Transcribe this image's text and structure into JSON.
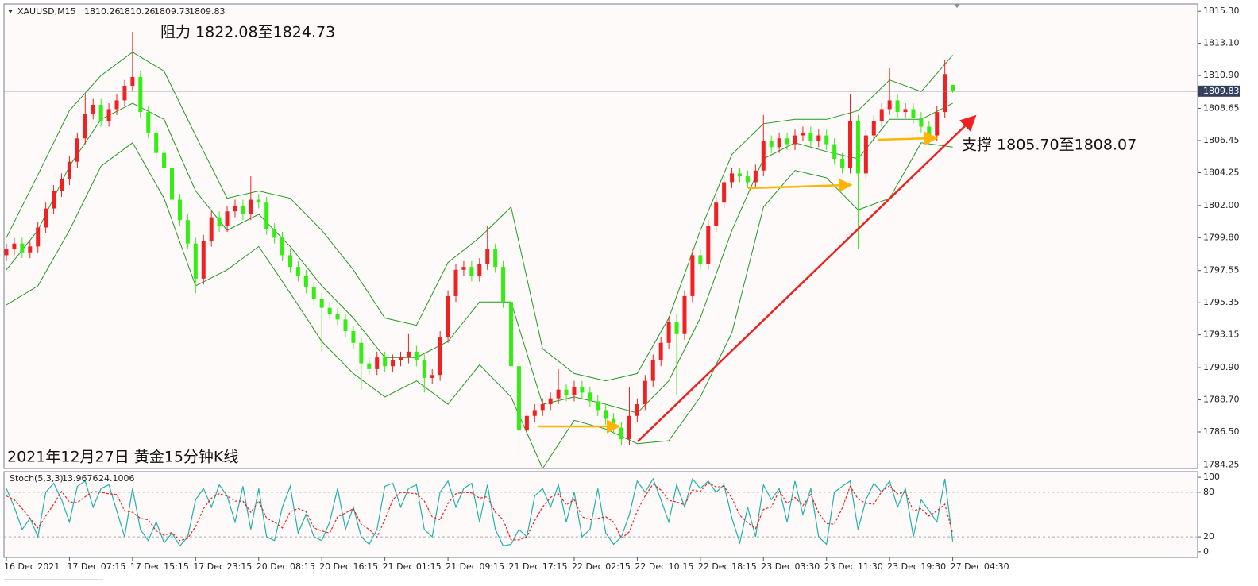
{
  "chart_data": [
    {
      "type": "candlestick",
      "symbol": "XAUUSD,M15",
      "annotations": [
        "阻力 1822.08至1824.73",
        "支撑 1805.70至1808.07",
        "2021年12月27日 黄金15分钟K线"
      ],
      "categories": [
        "16 Dec 2021",
        null,
        null,
        null,
        null,
        null,
        null,
        null,
        "17 Dec 07:15",
        null,
        null,
        null,
        null,
        null,
        null,
        null,
        "17 Dec 15:15",
        null,
        null,
        null,
        null,
        null,
        null,
        null,
        "17 Dec 23:15",
        null,
        null,
        null,
        null,
        null,
        null,
        null,
        "20 Dec 08:15",
        null,
        null,
        null,
        null,
        null,
        null,
        null,
        "20 Dec 16:15",
        null,
        null,
        null,
        null,
        null,
        null,
        null,
        "21 Dec 01:15",
        null,
        null,
        null,
        null,
        null,
        null,
        null,
        "21 Dec 09:15",
        null,
        null,
        null,
        null,
        null,
        null,
        null,
        "21 Dec 17:15",
        null,
        null,
        null,
        null,
        null,
        null,
        null,
        "22 Dec 02:15",
        null,
        null,
        null,
        null,
        null,
        null,
        null,
        "22 Dec 10:15",
        null,
        null,
        null,
        null,
        null,
        null,
        null,
        "22 Dec 18:15",
        null,
        null,
        null,
        null,
        null,
        null,
        null,
        "23 Dec 03:30",
        null,
        null,
        null,
        null,
        null,
        null,
        null,
        "23 Dec 11:30",
        null,
        null,
        null,
        null,
        null,
        null,
        null,
        "23 Dec 19:30",
        null,
        null,
        null,
        null,
        null,
        null,
        null,
        "27 Dec 04:30"
      ],
      "open": [
        1798.6,
        1799.0,
        1799.4,
        1798.8,
        1799.2,
        1800.5,
        1801.8,
        1803.0,
        1803.8,
        1805.0,
        1806.6,
        1808.3,
        1808.9,
        1807.8,
        1808.6,
        1809.2,
        1810.2,
        1810.8,
        1808.4,
        1807.0,
        1805.6,
        1804.6,
        1802.4,
        1801.0,
        1799.4,
        1797.0,
        1799.6,
        1801.2,
        1800.6,
        1801.6,
        1802.0,
        1801.4,
        1802.4,
        1802.2,
        1800.4,
        1799.8,
        1798.6,
        1797.8,
        1797.2,
        1796.4,
        1795.6,
        1795.0,
        1794.6,
        1794.2,
        1793.4,
        1792.6,
        1791.2,
        1790.8,
        1791.6,
        1791.0,
        1791.4,
        1791.6,
        1792.0,
        1791.4,
        1790.2,
        1790.4,
        1793.0,
        1795.8,
        1797.6,
        1797.8,
        1797.2,
        1798.0,
        1799.0,
        1797.8,
        1795.4,
        1791.0,
        1786.6,
        1787.6,
        1788.0,
        1788.4,
        1788.8,
        1789.4,
        1789.0,
        1789.6,
        1789.2,
        1788.6,
        1788.0,
        1787.4,
        1786.8,
        1786.0,
        1787.6,
        1788.4,
        1790.0,
        1791.4,
        1792.6,
        1794.0,
        1793.2,
        1795.8,
        1798.6,
        1798.0,
        1800.6,
        1802.2,
        1803.6,
        1804.2,
        1804.0,
        1803.6,
        1804.4,
        1806.4,
        1806.0,
        1806.6,
        1806.2,
        1806.8,
        1807.0,
        1806.4,
        1806.8,
        1806.2,
        1805.2,
        1804.6,
        1807.8,
        1804.2,
        1806.8,
        1807.8,
        1808.6,
        1809.2,
        1808.4,
        1808.6,
        1808.0,
        1807.4,
        1806.8,
        1808.4,
        1810.26
      ],
      "high": [
        1799.4,
        1799.8,
        1799.8,
        1799.6,
        1800.9,
        1802.2,
        1803.4,
        1804.2,
        1805.4,
        1807.0,
        1809.6,
        1809.3,
        1809.3,
        1809.0,
        1809.6,
        1810.6,
        1813.9,
        1811.2,
        1808.8,
        1807.4,
        1806.0,
        1805.0,
        1802.8,
        1801.4,
        1799.8,
        1800.0,
        1801.6,
        1801.6,
        1802.0,
        1802.4,
        1802.4,
        1804.0,
        1802.8,
        1802.6,
        1800.8,
        1800.2,
        1799.0,
        1798.2,
        1797.6,
        1796.8,
        1796.0,
        1795.4,
        1795.0,
        1794.6,
        1793.8,
        1793.0,
        1791.6,
        1792.0,
        1792.0,
        1791.8,
        1792.0,
        1793.2,
        1792.4,
        1791.8,
        1790.8,
        1793.4,
        1796.2,
        1798.0,
        1798.2,
        1798.2,
        1798.4,
        1800.6,
        1799.4,
        1798.2,
        1795.8,
        1791.4,
        1788.0,
        1788.4,
        1788.8,
        1789.2,
        1790.8,
        1789.8,
        1790.0,
        1790.0,
        1789.6,
        1789.0,
        1788.4,
        1787.8,
        1787.2,
        1789.6,
        1788.8,
        1790.4,
        1791.8,
        1793.0,
        1794.4,
        1794.6,
        1796.2,
        1799.0,
        1799.0,
        1801.0,
        1802.6,
        1804.0,
        1804.6,
        1804.6,
        1804.4,
        1804.8,
        1808.2,
        1806.8,
        1807.0,
        1807.0,
        1807.2,
        1807.4,
        1807.4,
        1807.2,
        1807.2,
        1806.6,
        1805.6,
        1809.6,
        1808.2,
        1807.2,
        1808.2,
        1809.0,
        1811.4,
        1809.6,
        1809.0,
        1809.0,
        1808.4,
        1807.8,
        1808.8,
        1812.0,
        1810.26
      ],
      "low": [
        1798.2,
        1798.6,
        1798.4,
        1798.4,
        1798.8,
        1800.1,
        1801.4,
        1802.6,
        1803.4,
        1804.6,
        1806.2,
        1807.9,
        1807.4,
        1807.4,
        1808.2,
        1808.8,
        1809.8,
        1808.0,
        1806.6,
        1805.2,
        1804.2,
        1802.0,
        1800.6,
        1799.0,
        1796.0,
        1796.6,
        1799.2,
        1800.2,
        1800.2,
        1801.2,
        1801.0,
        1801.0,
        1801.8,
        1800.0,
        1799.4,
        1798.2,
        1797.4,
        1796.8,
        1796.0,
        1795.2,
        1792.0,
        1794.2,
        1793.8,
        1793.0,
        1792.2,
        1789.4,
        1790.4,
        1790.4,
        1790.6,
        1790.6,
        1791.0,
        1791.2,
        1791.0,
        1789.2,
        1789.8,
        1790.0,
        1792.6,
        1795.4,
        1797.2,
        1796.8,
        1796.8,
        1797.6,
        1797.4,
        1795.0,
        1790.6,
        1785.0,
        1786.2,
        1787.2,
        1787.6,
        1788.0,
        1788.4,
        1788.6,
        1788.6,
        1788.8,
        1788.2,
        1787.6,
        1787.0,
        1786.4,
        1785.6,
        1785.6,
        1787.2,
        1788.0,
        1789.6,
        1791.0,
        1792.2,
        1789.0,
        1792.8,
        1795.4,
        1797.6,
        1797.6,
        1800.2,
        1801.8,
        1803.2,
        1803.6,
        1803.2,
        1803.2,
        1804.0,
        1805.6,
        1805.6,
        1805.8,
        1805.8,
        1806.4,
        1806.0,
        1806.0,
        1805.8,
        1804.8,
        1804.2,
        1804.2,
        1799.0,
        1803.8,
        1806.4,
        1807.4,
        1808.2,
        1808.0,
        1808.0,
        1807.6,
        1807.0,
        1806.4,
        1806.4,
        1808.0,
        1809.73
      ],
      "close": [
        1799.0,
        1799.4,
        1798.8,
        1799.2,
        1800.5,
        1801.8,
        1803.0,
        1803.8,
        1805.0,
        1806.6,
        1808.3,
        1808.9,
        1807.8,
        1808.6,
        1809.2,
        1810.2,
        1810.8,
        1808.4,
        1807.0,
        1805.6,
        1804.6,
        1802.4,
        1801.0,
        1799.4,
        1797.0,
        1799.6,
        1801.2,
        1800.6,
        1801.6,
        1802.0,
        1801.4,
        1802.4,
        1802.2,
        1800.4,
        1799.8,
        1798.6,
        1797.8,
        1797.2,
        1796.4,
        1795.6,
        1795.0,
        1794.6,
        1794.2,
        1793.4,
        1792.6,
        1791.2,
        1790.8,
        1791.6,
        1791.0,
        1791.4,
        1791.6,
        1792.0,
        1791.4,
        1790.2,
        1790.4,
        1793.0,
        1795.8,
        1797.6,
        1797.8,
        1797.2,
        1798.0,
        1799.0,
        1797.8,
        1795.4,
        1791.0,
        1786.6,
        1787.6,
        1788.0,
        1788.4,
        1788.8,
        1789.4,
        1789.0,
        1789.6,
        1789.2,
        1788.6,
        1788.0,
        1787.4,
        1786.8,
        1786.0,
        1787.6,
        1788.4,
        1790.0,
        1791.4,
        1792.6,
        1794.0,
        1793.2,
        1795.8,
        1798.6,
        1798.0,
        1800.6,
        1802.2,
        1803.6,
        1804.2,
        1804.0,
        1803.6,
        1804.4,
        1806.4,
        1806.0,
        1806.6,
        1806.2,
        1806.8,
        1807.0,
        1806.4,
        1806.8,
        1806.2,
        1805.2,
        1804.6,
        1807.8,
        1804.2,
        1806.8,
        1807.8,
        1808.6,
        1809.2,
        1808.4,
        1808.6,
        1808.0,
        1807.4,
        1806.8,
        1808.4,
        1811.0,
        1809.83
      ],
      "up_color": "#ee2222",
      "down_color": "#33ee11",
      "ylim": [
        1784.0,
        1815.8
      ],
      "yticks": [
        {
          "value": 1815.3,
          "label": "1815.30"
        },
        {
          "value": 1813.1,
          "label": "1813.10"
        },
        {
          "value": 1810.9,
          "label": "1810.90"
        },
        1808.65,
        1806.45,
        1804.25,
        {
          "value": 1802,
          "label": "1802.00"
        },
        {
          "value": 1799.8,
          "label": "1799.80"
        },
        1797.55,
        1795.35,
        1793.15,
        {
          "value": 1790.9,
          "label": "1790.90"
        },
        {
          "value": 1788.7,
          "label": "1788.70"
        },
        {
          "value": 1786.5,
          "label": "1786.50"
        },
        1784.25
      ],
      "bollinger": {
        "color": "#1f9a1f",
        "x": [
          0,
          4,
          8,
          12,
          16,
          20,
          24,
          28,
          32,
          36,
          40,
          44,
          48,
          52,
          56,
          60,
          64,
          68,
          72,
          76,
          80,
          84,
          88,
          92,
          96,
          100,
          104,
          108,
          112,
          116,
          120
        ],
        "upper": [
          1799.8,
          1804.1,
          1808.5,
          1810.9,
          1812.5,
          1811.2,
          1806.8,
          1802.5,
          1803.0,
          1802.5,
          1800.3,
          1797.6,
          1794.3,
          1793.8,
          1798.1,
          1799.8,
          1801.9,
          1792.2,
          1790.5,
          1790.0,
          1790.5,
          1794.3,
          1800.3,
          1805.5,
          1807.6,
          1807.9,
          1807.9,
          1808.5,
          1810.6,
          1809.8,
          1812.3
        ],
        "middle": [
          1797.6,
          1800.3,
          1804.7,
          1807.9,
          1809.0,
          1807.9,
          1803.0,
          1800.3,
          1801.4,
          1799.2,
          1796.5,
          1794.3,
          1791.6,
          1791.6,
          1792.7,
          1795.4,
          1795.4,
          1788.4,
          1788.9,
          1788.4,
          1787.8,
          1790.0,
          1794.3,
          1800.3,
          1805.2,
          1806.3,
          1805.7,
          1805.2,
          1807.9,
          1807.9,
          1809.0
        ],
        "lower": [
          1795.2,
          1796.5,
          1800.3,
          1804.7,
          1806.3,
          1802.5,
          1796.5,
          1797.6,
          1799.2,
          1796.0,
          1792.7,
          1790.5,
          1788.9,
          1790.0,
          1788.4,
          1791.1,
          1788.9,
          1784.0,
          1787.3,
          1786.7,
          1785.7,
          1785.9,
          1788.9,
          1793.3,
          1801.9,
          1804.4,
          1803.9,
          1801.7,
          1802.5,
          1806.3,
          1806.0
        ]
      }
    },
    {
      "type": "line",
      "title": "Stoch(5,3,3)",
      "ylim": [
        -7.6,
        107.6
      ],
      "yticks": [
        100,
        80,
        20,
        0
      ],
      "levels": [
        80,
        20
      ],
      "series": [
        {
          "color": "#20b2aa",
          "dashed": false,
          "values": [
            85,
            60,
            30,
            45,
            20,
            80,
            92,
            70,
            40,
            88,
            95,
            60,
            85,
            90,
            55,
            20,
            85,
            30,
            15,
            40,
            12,
            25,
            8,
            20,
            70,
            85,
            60,
            90,
            75,
            40,
            88,
            30,
            85,
            20,
            15,
            60,
            88,
            25,
            50,
            20,
            15,
            40,
            85,
            30,
            60,
            20,
            10,
            30,
            88,
            92,
            60,
            85,
            90,
            30,
            20,
            80,
            95,
            60,
            85,
            92,
            40,
            90,
            30,
            8,
            10,
            30,
            20,
            75,
            85,
            60,
            90,
            40,
            80,
            20,
            30,
            85,
            25,
            10,
            20,
            50,
            95,
            80,
            98,
            70,
            40,
            90,
            60,
            98,
            85,
            95,
            80,
            90,
            45,
            12,
            60,
            20,
            90,
            70,
            85,
            40,
            95,
            50,
            85,
            20,
            10,
            80,
            88,
            95,
            30,
            70,
            92,
            80,
            95,
            60,
            85,
            20,
            70,
            55,
            40,
            98,
            13.9676
          ]
        },
        {
          "color": "#ee2222",
          "dashed": true,
          "values": [
            75,
            70,
            58,
            45,
            32,
            48,
            64,
            81,
            67,
            66,
            74,
            81,
            80,
            78,
            77,
            55,
            53,
            45,
            43,
            28,
            22,
            26,
            15,
            18,
            34,
            58,
            72,
            78,
            75,
            68,
            68,
            53,
            68,
            45,
            40,
            32,
            54,
            58,
            54,
            32,
            28,
            25,
            47,
            52,
            58,
            37,
            30,
            20,
            43,
            70,
            80,
            79,
            78,
            68,
            47,
            43,
            65,
            78,
            80,
            79,
            72,
            74,
            53,
            43,
            16,
            16,
            20,
            42,
            60,
            73,
            78,
            63,
            70,
            47,
            43,
            45,
            47,
            40,
            18,
            27,
            55,
            75,
            91,
            83,
            69,
            67,
            63,
            83,
            81,
            93,
            87,
            88,
            72,
            49,
            39,
            31,
            57,
            60,
            82,
            65,
            73,
            62,
            77,
            52,
            38,
            37,
            59,
            88,
            71,
            65,
            64,
            81,
            89,
            78,
            80,
            55,
            58,
            48,
            55,
            64,
            24.1006
          ]
        }
      ]
    }
  ]
}
